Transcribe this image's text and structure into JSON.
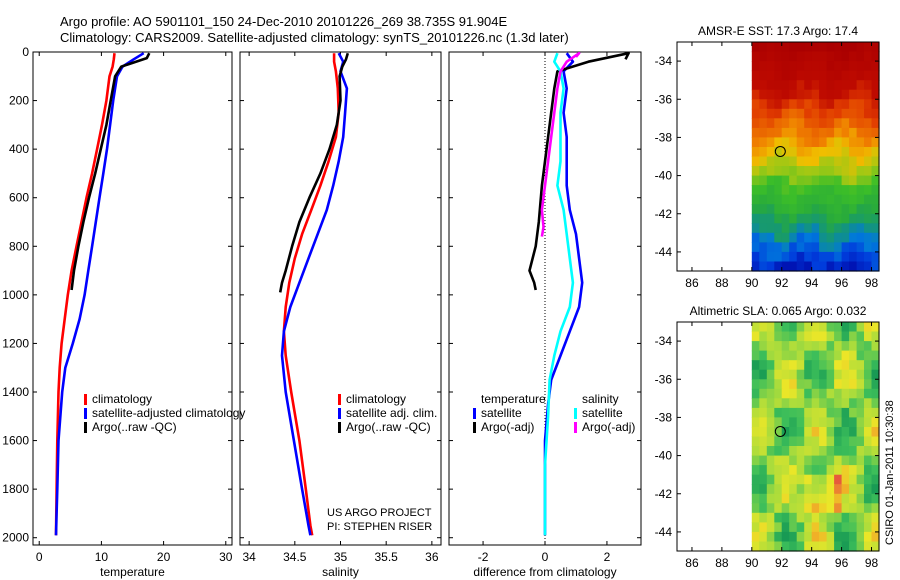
{
  "header": {
    "line1": "Argo profile: AO 5901101_150 24-Dec-2010 20101226_269 38.735S 91.904E",
    "line2": "Climatology: CARS2009. Satellite-adjusted climatology: synTS_20101226.nc (1.3d later)"
  },
  "footer": {
    "project": "US ARGO PROJECT",
    "pi": "PI: STEPHEN RISER",
    "stamp": "CSIRO 01-Jan-2011 10:30:38"
  },
  "colors": {
    "red": "#ff0000",
    "blue": "#0000ff",
    "black": "#000000",
    "cyan": "#00ffff",
    "magenta": "#ff00ff"
  },
  "chart_data": [
    {
      "type": "line",
      "title": "",
      "xlabel": "temperature",
      "ylabel": "",
      "xlim": [
        -1,
        31
      ],
      "ylim": [
        2030,
        0
      ],
      "xticks": [
        0,
        10,
        20,
        30
      ],
      "xtick_labels": [
        "0",
        "10",
        "20",
        "30"
      ],
      "yticks": [
        0,
        200,
        400,
        600,
        800,
        1000,
        1200,
        1400,
        1600,
        1800,
        2000
      ],
      "ytick_labels": [
        "0",
        "200",
        "400",
        "600",
        "800",
        "1000",
        "1200",
        "1400",
        "1600",
        "1800",
        "2000"
      ],
      "legend": [
        "climatology",
        "satellite-adjusted climatology",
        "Argo(..raw -QC)"
      ],
      "series": [
        {
          "name": "climatology",
          "color": "red",
          "x": [
            12.1,
            12.0,
            11.8,
            11.3,
            10.8,
            10.1,
            9.3,
            8.5,
            7.6,
            6.8,
            6.0,
            5.2,
            4.6,
            4.1,
            3.6,
            3.3,
            3.1,
            2.9,
            2.8,
            2.7
          ],
          "y": [
            5,
            30,
            60,
            100,
            200,
            300,
            400,
            500,
            600,
            700,
            800,
            900,
            1000,
            1100,
            1200,
            1300,
            1400,
            1600,
            1800,
            1990
          ]
        },
        {
          "name": "satellite-adjusted climatology",
          "color": "blue",
          "x": [
            16.8,
            15.2,
            13.4,
            12.5,
            11.9,
            11.4,
            10.9,
            10.3,
            9.7,
            9.1,
            8.5,
            7.9,
            7.3,
            6.5,
            5.4,
            4.2,
            3.7,
            3.1,
            2.9,
            2.8,
            2.7
          ],
          "y": [
            5,
            30,
            60,
            100,
            200,
            300,
            400,
            500,
            600,
            700,
            800,
            900,
            1000,
            1100,
            1200,
            1300,
            1400,
            1600,
            1800,
            1900,
            1990
          ]
        },
        {
          "name": "Argo(..raw -QC)",
          "color": "black",
          "x": [
            17.7,
            17.3,
            13.2,
            12.2,
            11.5,
            10.8,
            9.9,
            9.0,
            8.0,
            7.1,
            6.3,
            5.6,
            5.2
          ],
          "y": [
            5,
            25,
            60,
            100,
            200,
            300,
            400,
            500,
            600,
            700,
            800,
            900,
            980
          ]
        }
      ]
    },
    {
      "type": "line",
      "title": "",
      "xlabel": "salinity",
      "ylabel": "",
      "xlim": [
        33.9,
        36.1
      ],
      "ylim": [
        2030,
        0
      ],
      "xticks": [
        34,
        34.5,
        35,
        35.5,
        36
      ],
      "xtick_labels": [
        "34",
        "34.5",
        "35",
        "35.5",
        "36"
      ],
      "yticks": [
        0,
        200,
        400,
        600,
        800,
        1000,
        1200,
        1400,
        1600,
        1800,
        2000
      ],
      "legend": [
        "climatology",
        "satellite adj. clim.",
        "Argo(..raw -QC)"
      ],
      "series": [
        {
          "name": "climatology",
          "color": "red",
          "x": [
            34.93,
            34.93,
            34.95,
            34.97,
            34.98,
            34.95,
            34.87,
            34.78,
            34.68,
            34.58,
            34.5,
            34.44,
            34.4,
            34.38,
            34.4,
            34.46,
            34.55,
            34.62,
            34.67,
            34.69
          ],
          "y": [
            5,
            40,
            80,
            150,
            250,
            350,
            450,
            550,
            650,
            750,
            850,
            950,
            1050,
            1150,
            1250,
            1400,
            1600,
            1800,
            1950,
            1990
          ]
        },
        {
          "name": "satellite adj. clim.",
          "color": "blue",
          "x": [
            34.98,
            35.03,
            35.0,
            35.07,
            35.05,
            35.03,
            34.98,
            34.92,
            34.85,
            34.75,
            34.65,
            34.55,
            34.45,
            34.38,
            34.36,
            34.4,
            34.49,
            34.58,
            34.65,
            34.67
          ],
          "y": [
            5,
            40,
            80,
            150,
            250,
            350,
            450,
            550,
            650,
            750,
            850,
            950,
            1050,
            1150,
            1250,
            1400,
            1600,
            1800,
            1950,
            1990
          ]
        },
        {
          "name": "Argo(..raw -QC)",
          "color": "black",
          "x": [
            35.08,
            35.06,
            35.02,
            34.99,
            35.0,
            34.96,
            34.88,
            34.78,
            34.66,
            34.55,
            34.47,
            34.4,
            34.36,
            34.34
          ],
          "y": [
            5,
            30,
            60,
            100,
            200,
            300,
            400,
            500,
            600,
            700,
            800,
            900,
            950,
            990
          ]
        }
      ]
    },
    {
      "type": "line",
      "title": "",
      "xlabel": "difference from climatology",
      "ylabel": "",
      "xlim": [
        -3.1,
        3.1
      ],
      "ylim": [
        2030,
        0
      ],
      "xticks": [
        -2,
        0,
        2
      ],
      "xtick_labels": [
        "-2",
        "0",
        "2"
      ],
      "yticks": [
        0,
        200,
        400,
        600,
        800,
        1000,
        1200,
        1400,
        1600,
        1800,
        2000
      ],
      "legend_temperature": {
        "heading": "temperature",
        "items": [
          "satellite",
          "Argo(-adj)"
        ]
      },
      "legend_salinity": {
        "heading": "salinity",
        "items": [
          "satellite",
          "Argo(-adj)"
        ]
      },
      "series": [
        {
          "name": "temperature satellite",
          "color": "blue",
          "x": [
            0.7,
            0.9,
            0.6,
            0.7,
            0.6,
            0.7,
            0.7,
            0.7,
            0.8,
            1.0,
            1.1,
            1.2,
            1.1,
            0.8,
            0.5,
            0.2,
            0.1,
            0.0,
            0.0,
            0.0,
            0.0
          ],
          "y": [
            5,
            40,
            80,
            150,
            250,
            350,
            450,
            550,
            650,
            750,
            850,
            950,
            1050,
            1150,
            1250,
            1350,
            1450,
            1600,
            1800,
            1900,
            1990
          ]
        },
        {
          "name": "temperature Argo(-adj)",
          "color": "black",
          "x": [
            2.6,
            2.7,
            1.4,
            0.4,
            0.3,
            0.2,
            0.1,
            0.0,
            -0.1,
            -0.2,
            -0.3,
            -0.4,
            -0.5,
            -0.35,
            -0.3
          ],
          "y": [
            30,
            5,
            40,
            80,
            150,
            250,
            350,
            450,
            550,
            700,
            800,
            850,
            900,
            950,
            980
          ]
        },
        {
          "name": "salinity satellite",
          "color": "cyan",
          "x": [
            0.4,
            0.3,
            0.5,
            0.6,
            0.5,
            0.5,
            0.5,
            0.4,
            0.6,
            0.7,
            0.8,
            0.9,
            0.8,
            0.5,
            0.3,
            0.15,
            0.1,
            0.0,
            0.0,
            0.0
          ],
          "y": [
            5,
            40,
            80,
            150,
            250,
            350,
            450,
            550,
            650,
            750,
            850,
            950,
            1050,
            1150,
            1250,
            1350,
            1500,
            1700,
            1900,
            1990
          ]
        },
        {
          "name": "salinity Argo(-adj)",
          "color": "magenta",
          "x": [
            1.0,
            1.1,
            0.7,
            0.5,
            0.4,
            0.3,
            0.2,
            0.1,
            0.0,
            -0.1,
            -0.05,
            -0.1
          ],
          "y": [
            20,
            5,
            40,
            80,
            150,
            250,
            350,
            450,
            550,
            650,
            720,
            760
          ]
        }
      ]
    },
    {
      "type": "heatmap",
      "title": "AMSR-E SST: 17.3 Argo: 17.4",
      "xlabel": "",
      "ylabel": "",
      "xlim": [
        85,
        98.5
      ],
      "ylim": [
        -45,
        -33
      ],
      "xticks": [
        86,
        88,
        90,
        92,
        94,
        96,
        98
      ],
      "xtick_labels": [
        "86",
        "88",
        "90",
        "92",
        "94",
        "96",
        "98"
      ],
      "yticks": [
        -34,
        -36,
        -38,
        -40,
        -42,
        -44
      ],
      "ytick_labels": [
        "-34",
        "-36",
        "-38",
        "-40",
        "-42",
        "-44"
      ],
      "data_extent_lon": [
        90,
        98.5
      ],
      "float_position": {
        "lon": 91.904,
        "lat": -38.735
      }
    },
    {
      "type": "heatmap",
      "title": "Altimetric SLA: 0.065 Argo: 0.032",
      "xlabel": "",
      "ylabel": "",
      "xlim": [
        85,
        98.5
      ],
      "ylim": [
        -45,
        -33
      ],
      "xticks": [
        86,
        88,
        90,
        92,
        94,
        96,
        98
      ],
      "xtick_labels": [
        "86",
        "88",
        "90",
        "92",
        "94",
        "96",
        "98"
      ],
      "yticks": [
        -34,
        -36,
        -38,
        -40,
        -42,
        -44
      ],
      "ytick_labels": [
        "-34",
        "-36",
        "-38",
        "-40",
        "-42",
        "-44"
      ],
      "data_extent_lon": [
        90,
        98.5
      ],
      "float_position": {
        "lon": 91.904,
        "lat": -38.735
      }
    }
  ]
}
